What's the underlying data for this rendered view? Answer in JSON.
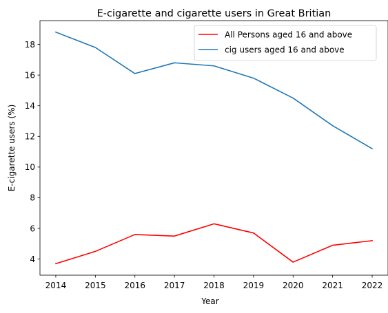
{
  "chart_data": {
    "type": "line",
    "title": "E-cigarette and cigarette users in Great Britian",
    "xlabel": "Year",
    "ylabel": "E-cigarette users (%)",
    "x": [
      2014,
      2015,
      2016,
      2017,
      2018,
      2019,
      2020,
      2021,
      2022
    ],
    "xlim": [
      2013.6,
      2022.4
    ],
    "ylim": [
      2.95,
      19.55
    ],
    "xticks": [
      "2014",
      "2015",
      "2016",
      "2017",
      "2018",
      "2019",
      "2020",
      "2021",
      "2022"
    ],
    "yticks": [
      "4",
      "6",
      "8",
      "10",
      "12",
      "14",
      "16",
      "18"
    ],
    "grid": false,
    "legend_position": "top-right",
    "series": [
      {
        "name": "All Persons aged 16 and above",
        "color": "#ff0000",
        "values": [
          3.7,
          4.5,
          5.6,
          5.5,
          6.3,
          5.7,
          3.8,
          4.9,
          5.2
        ]
      },
      {
        "name": "cig users aged 16 and above",
        "color": "#1f77b4",
        "values": [
          18.8,
          17.8,
          16.1,
          16.8,
          16.6,
          15.8,
          14.5,
          12.7,
          11.2
        ]
      }
    ]
  }
}
